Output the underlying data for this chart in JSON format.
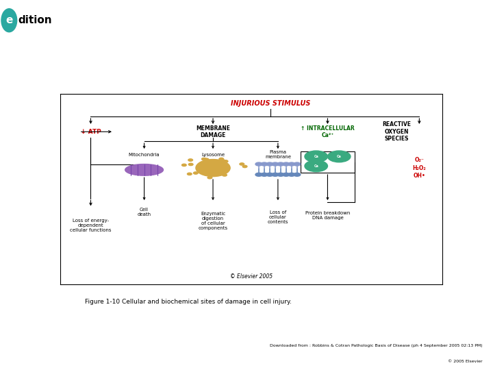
{
  "page_bg": "#ffffff",
  "left_panel_bg": "#e8e8e8",
  "logo_e_color": "#2aa8a0",
  "logo_dition_color": "#000000",
  "figure_caption": "Figure 1-10 Cellular and biochemical sites of damage in cell injury.",
  "download_line1": "Downloaded from : Robbins & Cotran Pathologic Basis of Disease (ph 4 September 2005 02:13 PM)",
  "download_line2": "© 2005 Elsevier",
  "diagram_title": "INJURIOUS STIMULUS",
  "diagram_title_color": "#cc0000",
  "atp_label": "↓ ATP",
  "atp_red_color": "#cc0000",
  "membrane_damage_label": "MEMBRANE\nDAMAGE",
  "intracellular_label": "↑ INTRACELLULAR\nCa²⁺",
  "intracellular_color": "#006600",
  "reactive_label": "REACTIVE\nOXYGEN\nSPECIES",
  "ros_species_1": "O₂⁻",
  "ros_species_2": "H₂O₂",
  "ros_species_3": "OH•",
  "ros_color": "#cc0000",
  "mitochondria_label": "Mitochondria",
  "lysosome_label": "Lysosome",
  "plasma_membrane_label": "Plasma\nmembrane",
  "loss_energy_label": "Loss of energy-\ndependent\ncellular functions",
  "cell_death_label": "Cell\ndeath",
  "enzymatic_label": "Enzymatic\ndigestion\nof cellular\ncomponents",
  "loss_cellular_label": "Loss of\ncellular\ncontents",
  "protein_breakdown_label": "Protein breakdown\nDNA damage",
  "elsevier_copyright": "© Elsevier 2005",
  "mito_color": "#9966bb",
  "mito_inner_color": "#7744aa",
  "lyso_color": "#d4a843",
  "ca_color": "#3aaa80",
  "membrane_color_top": "#8899aa",
  "membrane_color_bot": "#6688bb"
}
